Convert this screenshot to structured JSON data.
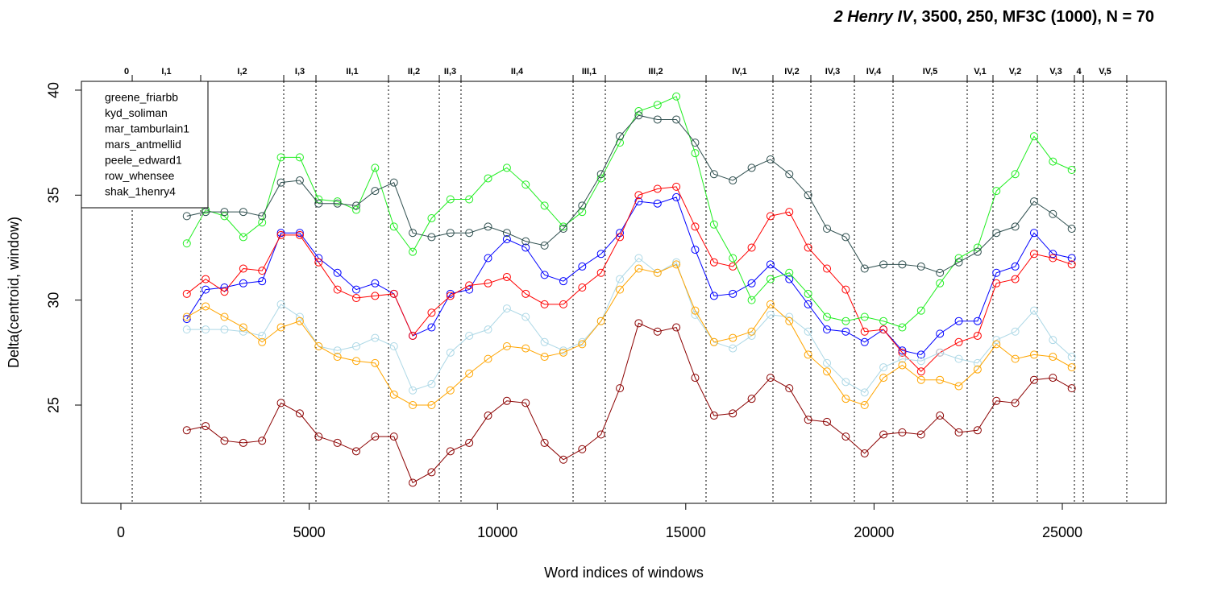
{
  "chart_data": {
    "type": "line",
    "title": [
      "2 Henry IV",
      ", 3500, 250, MF3C (1000), N = 70"
    ],
    "xlabel": "Word indices of windows",
    "ylabel": "Delta(centroid, window)",
    "xlim": [
      -1049,
      27761
    ],
    "ylim": [
      20.32,
      40.42
    ],
    "xticks": [
      0,
      5000,
      10000,
      15000,
      20000,
      25000
    ],
    "yticks": [
      25,
      30,
      35,
      40
    ],
    "legend": "top-left",
    "scene_ends": [
      300,
      2119,
      4324,
      5180,
      7106,
      8455,
      9032,
      12008,
      12864,
      15539,
      17316,
      18322,
      19478,
      20505,
      22474,
      23159,
      24336,
      25321,
      25557,
      26712
    ],
    "scene_labels": [
      "0",
      "I,1",
      "I,2",
      "I,3",
      "II,1",
      "II,2",
      "II,3",
      "II,4",
      "III,1",
      "III,2",
      "IV,1",
      "IV,2",
      "IV,3",
      "IV,4",
      "IV,5",
      "V,1",
      "V,2",
      "V,3",
      "4",
      "V,5"
    ],
    "x": [
      1750,
      2250,
      2750,
      3250,
      3750,
      4250,
      4750,
      5250,
      5750,
      6250,
      6750,
      7250,
      7750,
      8250,
      8750,
      9250,
      9750,
      10250,
      10750,
      11250,
      11750,
      12250,
      12750,
      13250,
      13750,
      14250,
      14750,
      15250,
      15750,
      16250,
      16750,
      17250,
      17750,
      18250,
      18750,
      19250,
      19750,
      20250,
      20750,
      21250,
      21750,
      22250,
      22750,
      23250,
      23750,
      24250,
      24750,
      25250
    ],
    "series": [
      {
        "name": "greene_friarbb",
        "color": "#0000ff",
        "values": [
          29.1,
          30.5,
          30.6,
          30.8,
          30.9,
          33.2,
          33.2,
          32.0,
          31.3,
          30.5,
          30.8,
          30.3,
          28.3,
          28.7,
          30.3,
          30.5,
          32.0,
          32.9,
          32.5,
          31.2,
          30.9,
          31.6,
          32.2,
          33.2,
          34.7,
          34.6,
          34.9,
          32.4,
          30.2,
          30.3,
          30.8,
          31.7,
          31.0,
          29.8,
          28.6,
          28.5,
          28.0,
          28.6,
          27.6,
          27.4,
          28.4,
          29.0,
          29.0,
          31.3,
          31.6,
          33.2,
          32.2,
          32.0
        ]
      },
      {
        "name": "kyd_soliman",
        "color": "#ff0000",
        "values": [
          30.3,
          31.0,
          30.4,
          31.5,
          31.4,
          33.1,
          33.1,
          31.8,
          30.5,
          30.1,
          30.2,
          30.3,
          28.3,
          29.4,
          30.2,
          30.7,
          30.8,
          31.1,
          30.3,
          29.8,
          29.8,
          30.6,
          31.3,
          33.0,
          35.0,
          35.3,
          35.4,
          33.5,
          31.8,
          31.6,
          32.5,
          34.0,
          34.2,
          32.5,
          31.5,
          30.5,
          28.5,
          28.6,
          27.5,
          26.6,
          27.5,
          28.0,
          28.3,
          30.8,
          31.0,
          32.2,
          32.0,
          31.7
        ]
      },
      {
        "name": "mar_tamburlain1",
        "color": "#22ee22",
        "values": [
          32.7,
          34.3,
          34.0,
          33.0,
          33.7,
          36.8,
          36.8,
          34.8,
          34.7,
          34.3,
          36.3,
          33.5,
          32.3,
          33.9,
          34.8,
          34.8,
          35.8,
          36.3,
          35.5,
          34.5,
          33.5,
          34.2,
          35.8,
          37.5,
          39.0,
          39.3,
          39.7,
          37.0,
          33.6,
          32.0,
          30.0,
          31.0,
          31.3,
          30.3,
          29.2,
          29.0,
          29.2,
          29.0,
          28.7,
          29.5,
          30.8,
          32.0,
          32.5,
          35.2,
          36.0,
          37.8,
          36.6,
          36.2
        ]
      },
      {
        "name": "mars_antmellid",
        "color": "#2f4f4f",
        "values": [
          34.0,
          34.2,
          34.2,
          34.2,
          34.0,
          35.6,
          35.7,
          34.6,
          34.6,
          34.5,
          35.2,
          35.6,
          33.2,
          33.0,
          33.2,
          33.2,
          33.5,
          33.2,
          32.8,
          32.6,
          33.4,
          34.5,
          36.0,
          37.8,
          38.8,
          38.6,
          38.6,
          37.5,
          36.0,
          35.7,
          36.3,
          36.7,
          36.0,
          35.0,
          33.4,
          33.0,
          31.5,
          31.7,
          31.7,
          31.6,
          31.3,
          31.8,
          32.3,
          33.2,
          33.5,
          34.7,
          34.1,
          33.4
        ]
      },
      {
        "name": "peele_edward1",
        "color": "#add8e6",
        "values": [
          28.6,
          28.6,
          28.6,
          28.5,
          28.3,
          29.8,
          29.2,
          27.8,
          27.6,
          27.8,
          28.2,
          27.8,
          25.7,
          26.0,
          27.5,
          28.3,
          28.6,
          29.6,
          29.2,
          28.0,
          27.6,
          28.0,
          29.0,
          31.0,
          32.0,
          31.3,
          31.8,
          29.3,
          28.0,
          27.7,
          28.3,
          29.3,
          29.2,
          28.5,
          27.0,
          26.1,
          25.6,
          26.8,
          27.2,
          27.1,
          27.5,
          27.2,
          27.0,
          28.1,
          28.5,
          29.5,
          28.1,
          27.3
        ]
      },
      {
        "name": "row_whensee",
        "color": "#ffa500",
        "values": [
          29.2,
          29.7,
          29.2,
          28.7,
          28.0,
          28.7,
          29.0,
          27.8,
          27.3,
          27.1,
          27.0,
          25.5,
          25.0,
          25.0,
          25.7,
          26.5,
          27.2,
          27.8,
          27.7,
          27.3,
          27.5,
          27.9,
          29.0,
          30.5,
          31.5,
          31.3,
          31.7,
          29.5,
          28.0,
          28.2,
          28.5,
          29.8,
          29.0,
          27.4,
          26.6,
          25.3,
          25.0,
          26.3,
          26.9,
          26.2,
          26.2,
          25.9,
          26.7,
          27.9,
          27.2,
          27.4,
          27.3,
          26.8
        ]
      },
      {
        "name": "shak_1henry4",
        "color": "#8b0000",
        "values": [
          23.8,
          24.0,
          23.3,
          23.2,
          23.3,
          25.1,
          24.6,
          23.5,
          23.2,
          22.8,
          23.5,
          23.5,
          21.3,
          21.8,
          22.8,
          23.2,
          24.5,
          25.2,
          25.1,
          23.2,
          22.4,
          22.9,
          23.6,
          25.8,
          28.9,
          28.5,
          28.7,
          26.3,
          24.5,
          24.6,
          25.3,
          26.3,
          25.8,
          24.3,
          24.2,
          23.5,
          22.7,
          23.6,
          23.7,
          23.6,
          24.5,
          23.7,
          23.8,
          25.2,
          25.1,
          26.2,
          26.3,
          25.8
        ]
      }
    ]
  }
}
